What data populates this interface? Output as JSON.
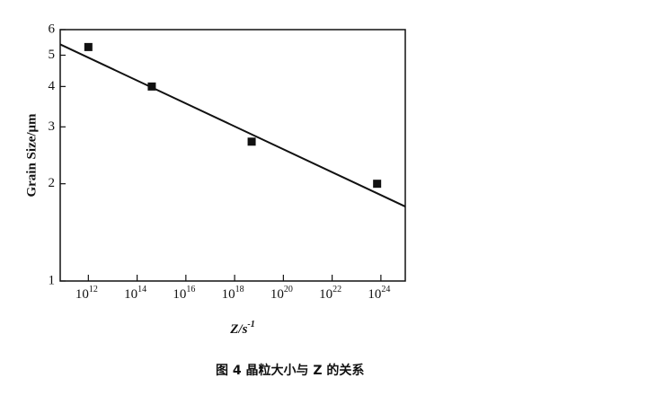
{
  "chart_data": {
    "type": "scatter",
    "log_x": true,
    "log_y": true,
    "x_label": "Z/s^-1",
    "y_label": "Grain Size/μm",
    "caption": "图 4   晶粒大小与 Z 的关系",
    "xlim": [
      70000000000.0,
      1e+25
    ],
    "xticks": [
      {
        "value": 1000000000000.0,
        "label": "10^12"
      },
      {
        "value": 100000000000000.0,
        "label": "10^14"
      },
      {
        "value": 1e+16,
        "label": "10^16"
      },
      {
        "value": 1e+18,
        "label": "10^18"
      },
      {
        "value": 1e+20,
        "label": "10^20"
      },
      {
        "value": 1e+22,
        "label": "10^22"
      },
      {
        "value": 1e+24,
        "label": "10^24"
      }
    ],
    "ylim": [
      1,
      6
    ],
    "yticks": [
      1,
      2,
      3,
      4,
      5,
      6
    ],
    "series": [
      {
        "type": "scatter",
        "color": "#111111",
        "x": [
          1000000000000.0,
          400000000000000.0,
          5e+18,
          7e+23
        ],
        "values": [
          5.3,
          4.0,
          2.7,
          2.0
        ]
      },
      {
        "type": "line",
        "color": "#111111",
        "x": [
          70000000000.0,
          1e+25
        ],
        "values": [
          5.4,
          1.7
        ]
      }
    ]
  }
}
